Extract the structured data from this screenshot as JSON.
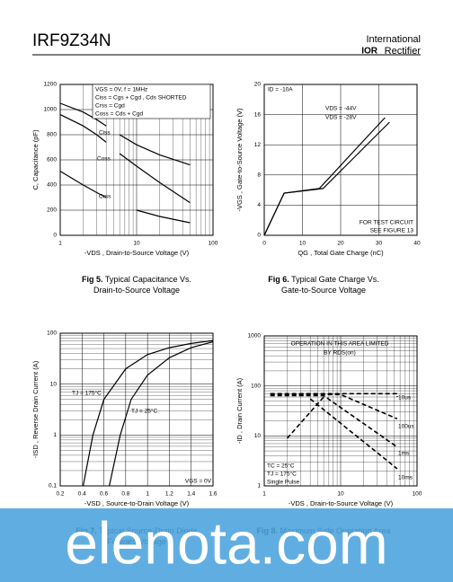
{
  "header": {
    "part": "IRF9Z34N",
    "logo": [
      "International",
      "IOR",
      "Rectifier"
    ]
  },
  "chart_data": [
    {
      "type": "line",
      "caption": {
        "label": "Fig 5.",
        "lines": [
          "Typical Capacitance Vs.",
          "Drain-to-Source Voltage"
        ]
      },
      "xlabel": "-VDS , Drain-to-Source Voltage (V)",
      "ylabel": "C, Capacitance (pF)",
      "xscale": "log",
      "xlim": [
        1,
        100
      ],
      "xticks": [
        1,
        10,
        100
      ],
      "ylim": [
        0,
        1200
      ],
      "yticks": [
        0,
        200,
        400,
        600,
        800,
        1000,
        1200
      ],
      "grid": true,
      "color": "#000000",
      "dashed": false,
      "series": [
        {
          "name": "Ciss",
          "x": [
            1,
            2,
            3,
            4,
            5,
            6,
            10,
            20,
            50
          ],
          "values": [
            1050,
            980,
            920,
            870,
            null,
            800,
            720,
            640,
            560
          ]
        },
        {
          "name": "Coss",
          "x": [
            1,
            2,
            3,
            4,
            5,
            6,
            10,
            20,
            50
          ],
          "values": [
            960,
            870,
            800,
            740,
            null,
            650,
            550,
            420,
            260
          ]
        },
        {
          "name": "Crss",
          "x": [
            1,
            2,
            3,
            4,
            5,
            10,
            20,
            50
          ],
          "values": [
            510,
            400,
            340,
            300,
            null,
            200,
            150,
            100
          ]
        }
      ],
      "annotations": [
        "VGS = 0V,      f = 1MHz",
        "Ciss = Cgs + Cgd ,  Cds SHORTED",
        "Crss = Cgd",
        "Coss = Cds + Cgd"
      ]
    },
    {
      "type": "line",
      "caption": {
        "label": "Fig 6.",
        "lines": [
          "Typical Gate Charge Vs.",
          "Gate-to-Source Voltage"
        ]
      },
      "xlabel": "QG , Total Gate Charge (nC)",
      "ylabel": "-VGS , Gate-to-Source Voltage (V)",
      "xscale": "linear",
      "xlim": [
        0,
        40
      ],
      "xticks": [
        0,
        10,
        20,
        30,
        40
      ],
      "ylim": [
        0,
        20
      ],
      "yticks": [
        0,
        4,
        8,
        12,
        16,
        20
      ],
      "grid": true,
      "color": "#000000",
      "dashed": false,
      "series": [
        {
          "name": "VDS = -44V",
          "x": [
            0,
            5.2,
            15.4,
            32.8
          ],
          "values": [
            0,
            5.6,
            6.2,
            15.0
          ]
        },
        {
          "name": "VDS = -28V",
          "x": [
            0,
            5.2,
            14.4,
            31.6
          ],
          "values": [
            0,
            5.6,
            6.2,
            15.6
          ]
        }
      ],
      "annotations": [
        "ID = -10A",
        "FOR TEST CIRCUIT",
        "SEE FIGURE 13"
      ]
    },
    {
      "type": "line",
      "caption": {
        "label": "Fig 7.",
        "lines": [
          "Typical Source-Drain Diode",
          "Forward Voltage"
        ]
      },
      "xlabel": "-VSD , Source-to-Drain Voltage (V)",
      "ylabel": "-ISD , Reverse Drain Current (A)",
      "xscale": "linear",
      "yscale": "log",
      "xlim": [
        0.2,
        1.6
      ],
      "xticks": [
        0.2,
        0.4,
        0.6,
        0.8,
        1.0,
        1.2,
        1.4,
        1.6
      ],
      "ylim": [
        0.1,
        100
      ],
      "yticks": [
        0.1,
        1,
        10,
        100
      ],
      "grid": true,
      "color": "#000000",
      "dashed": false,
      "series": [
        {
          "name": "TJ = 175°C",
          "x": [
            0.41,
            0.5,
            0.6,
            0.8,
            1.0,
            1.2,
            1.4,
            1.6
          ],
          "values": [
            0.1,
            1,
            5,
            20,
            38,
            52,
            63,
            72
          ]
        },
        {
          "name": "TJ = 25°C",
          "x": [
            0.65,
            0.75,
            0.85,
            1.0,
            1.2,
            1.4,
            1.6
          ],
          "values": [
            0.1,
            1,
            5,
            15,
            33,
            52,
            68
          ]
        }
      ],
      "annotations": [
        "VGS = 0V"
      ]
    },
    {
      "type": "line",
      "caption": {
        "label": "Fig 8.",
        "lines": [
          "Maximum Safe Operating Area"
        ]
      },
      "xlabel": "-VDS , Drain-to-Source Voltage (V)",
      "ylabel": "-ID , Drain Current (A)",
      "xscale": "log",
      "yscale": "log",
      "xlim": [
        1,
        100
      ],
      "xticks": [
        1,
        10,
        100
      ],
      "ylim": [
        1,
        1000
      ],
      "yticks": [
        1,
        10,
        100,
        1000
      ],
      "grid": true,
      "color": "#000000",
      "dashed": true,
      "series": [
        {
          "name": "10us",
          "x": [
            1.2,
            55,
            55
          ],
          "values": [
            70,
            70,
            60
          ]
        },
        {
          "name": "100us",
          "x": [
            1.2,
            10,
            55
          ],
          "values": [
            67,
            67,
            22
          ]
        },
        {
          "name": "1ms",
          "x": [
            1.2,
            6,
            55
          ],
          "values": [
            64,
            64,
            6
          ]
        },
        {
          "name": "10ms",
          "x": [
            4,
            55
          ],
          "values": [
            55,
            2.2
          ]
        },
        {
          "x": [
            2,
            6
          ],
          "values": [
            9,
            60
          ]
        }
      ],
      "annotations": [
        "OPERATION IN THIS AREA LIMITED",
        "BY RDS(on)",
        "TC = 25°C",
        "TJ = 175°C",
        "Single Pulse"
      ]
    }
  ],
  "watermark": "elenota.com"
}
